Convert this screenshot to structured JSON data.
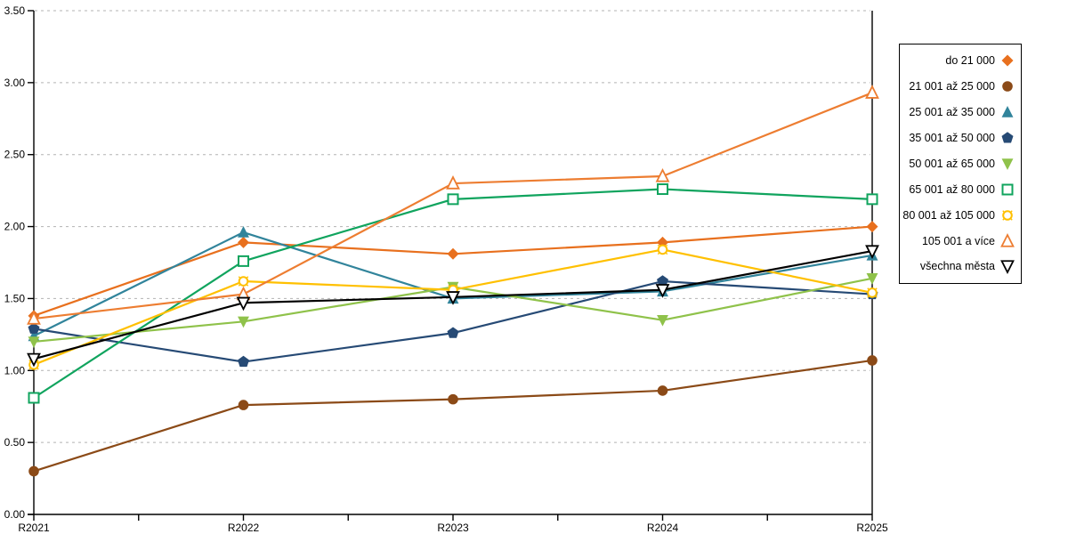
{
  "chart_data": {
    "type": "line",
    "title": "",
    "xlabel": "",
    "ylabel": "",
    "categories": [
      "R2021",
      "R2022",
      "R2023",
      "R2024",
      "R2025"
    ],
    "series": [
      {
        "name": "do 21 000",
        "marker": "diamond-filled",
        "color": "#E8701E",
        "values": [
          1.38,
          1.89,
          1.81,
          1.89,
          2.0
        ]
      },
      {
        "name": "21 001 až 25 000",
        "marker": "circle-filled",
        "color": "#8B4A17",
        "values": [
          0.3,
          0.76,
          0.8,
          0.86,
          1.07
        ]
      },
      {
        "name": "25 001 až 35 000",
        "marker": "triangle-up-filled",
        "color": "#31849B",
        "values": [
          1.24,
          1.96,
          1.5,
          1.55,
          1.8
        ]
      },
      {
        "name": "35 001 až 50 000",
        "marker": "pentagon-filled",
        "color": "#264A75",
        "values": [
          1.29,
          1.06,
          1.26,
          1.62,
          1.53
        ]
      },
      {
        "name": "50 001 až 65 000",
        "marker": "triangle-down-filled",
        "color": "#8FC24A",
        "values": [
          1.2,
          1.34,
          1.58,
          1.35,
          1.64
        ]
      },
      {
        "name": "65 001 až 80 000",
        "marker": "square-open",
        "color": "#10A45E",
        "values": [
          0.81,
          1.76,
          2.19,
          2.26,
          2.19
        ]
      },
      {
        "name": "80 001 až 105 000",
        "marker": "circle-open-ticked",
        "color": "#FFC000",
        "values": [
          1.04,
          1.62,
          1.56,
          1.84,
          1.54
        ]
      },
      {
        "name": "105 001 a více",
        "marker": "triangle-up-open",
        "color": "#ED7D31",
        "values": [
          1.36,
          1.53,
          2.3,
          2.35,
          2.93
        ]
      },
      {
        "name": "všechna města",
        "marker": "triangle-down-open",
        "color": "#000000",
        "values": [
          1.08,
          1.47,
          1.51,
          1.56,
          1.83
        ]
      }
    ],
    "ylim": [
      0,
      3.5
    ],
    "ytick_step": 0.5,
    "y_tick_labels": [
      "0.00",
      "0.50",
      "1.00",
      "1.50",
      "2.00",
      "2.50",
      "3.00",
      "3.50"
    ],
    "grid": "horizontal-dashed",
    "gridline_color": "#B3B3B3",
    "axis_color": "#000000",
    "legend_position": "right"
  }
}
